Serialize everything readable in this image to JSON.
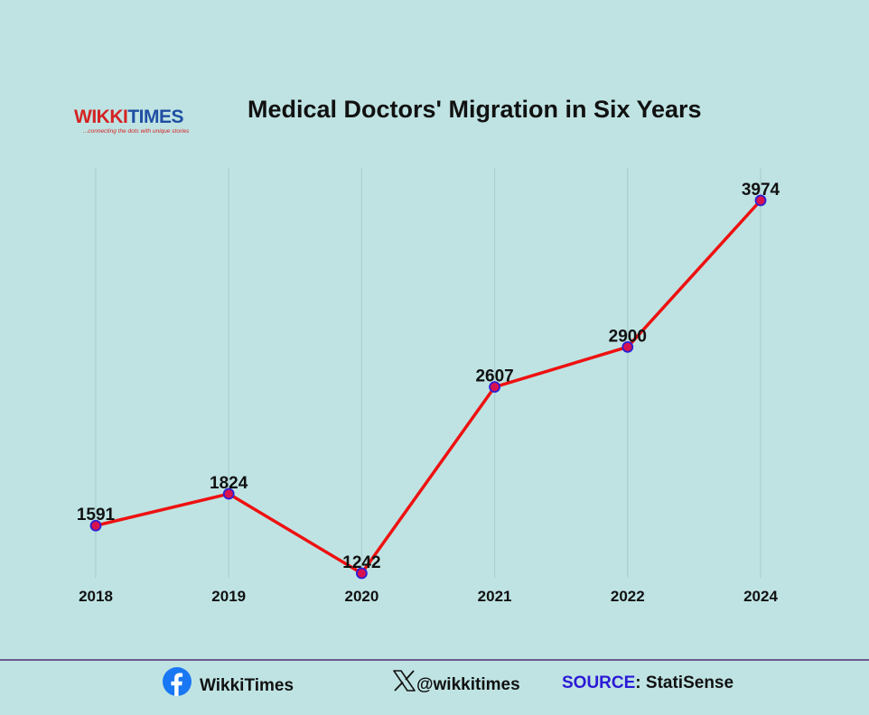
{
  "logo": {
    "wikki": "WIKKI",
    "times": "TIMES",
    "tagline": "...connecting the dots with unique stories"
  },
  "chart_data": {
    "type": "line",
    "title": "Medical Doctors' Migration in Six Years",
    "categories": [
      "2018",
      "2019",
      "2020",
      "2021",
      "2022",
      "2024"
    ],
    "series": [
      {
        "values": [
          1591,
          1824,
          1242,
          2607,
          2900,
          3974
        ]
      }
    ],
    "data_labels": [
      "1591",
      "1824",
      "1242",
      "2607",
      "2900",
      "3974"
    ],
    "xlabel": "",
    "ylabel": "",
    "y_axis_visible": false,
    "grid": "vertical",
    "legend": "none",
    "colors": {
      "line": "#ee1111",
      "marker_fill": "#d8114f",
      "marker_stroke": "#2a1fd6",
      "grid": "#a9cfcf"
    }
  },
  "footer": {
    "facebook_label": "WikkiTimes",
    "x_label": "@wikkitimes",
    "source_key": "SOURCE",
    "source_sep": ":",
    "source_value": " StatiSense"
  },
  "icons": [
    "facebook-icon",
    "x-icon"
  ]
}
